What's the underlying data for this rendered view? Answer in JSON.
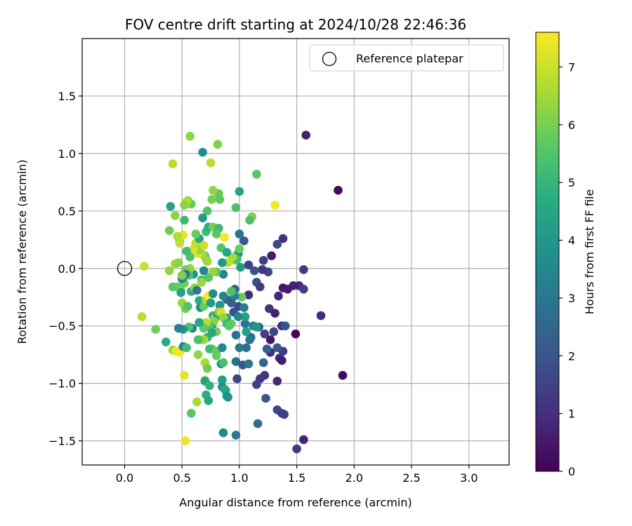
{
  "chart_data": {
    "type": "scatter",
    "title": "FOV centre drift starting at 2024/10/28 22:46:36",
    "xlabel": "Angular distance from reference (arcmin)",
    "ylabel": "Rotation from reference (arcmin)",
    "xlim": [
      -0.37,
      3.35
    ],
    "ylim": [
      -1.71,
      2.0
    ],
    "xticks": [
      0.0,
      0.5,
      1.0,
      1.5,
      2.0,
      2.5,
      3.0
    ],
    "xtick_labels": [
      "0.0",
      "0.5",
      "1.0",
      "1.5",
      "2.0",
      "2.5",
      "3.0"
    ],
    "yticks": [
      -1.5,
      -1.0,
      -0.5,
      0.0,
      0.5,
      1.0,
      1.5
    ],
    "ytick_labels": [
      "−1.5",
      "−1.0",
      "−0.5",
      "0.0",
      "0.5",
      "1.0",
      "1.5"
    ],
    "grid": true,
    "legend": {
      "placement": "top-right",
      "entries": [
        "Reference platepar"
      ]
    },
    "reference_point": {
      "x": 0.0,
      "y": 0.0
    },
    "colorbar": {
      "label": "Hours from first FF file",
      "range": [
        0,
        7.6
      ],
      "ticks": [
        0,
        1,
        2,
        3,
        4,
        5,
        6,
        7
      ],
      "tick_labels": [
        "0",
        "1",
        "2",
        "3",
        "4",
        "5",
        "6",
        "7"
      ],
      "colormap": "viridis"
    },
    "points": [
      [
        1.86,
        0.68,
        0.2
      ],
      [
        1.9,
        -0.93,
        0.2
      ],
      [
        1.49,
        -0.57,
        0.1
      ],
      [
        1.58,
        1.16,
        0.7
      ],
      [
        1.71,
        -0.41,
        0.9
      ],
      [
        1.5,
        -1.57,
        1.3
      ],
      [
        1.56,
        -1.49,
        0.8
      ],
      [
        1.38,
        0.26,
        1.0
      ],
      [
        1.33,
        0.21,
        1.7
      ],
      [
        1.28,
        0.11,
        0.6
      ],
      [
        1.21,
        0.07,
        1.4
      ],
      [
        1.56,
        -0.01,
        1.3
      ],
      [
        1.52,
        -0.15,
        0.9
      ],
      [
        1.56,
        -0.18,
        1.4
      ],
      [
        1.47,
        -0.15,
        0.7
      ],
      [
        1.42,
        -0.18,
        0.6
      ],
      [
        1.38,
        -0.17,
        0.5
      ],
      [
        1.34,
        -0.24,
        0.8
      ],
      [
        1.25,
        -0.03,
        1.6
      ],
      [
        1.2,
        -0.01,
        1.2
      ],
      [
        1.13,
        -0.02,
        2.0
      ],
      [
        1.08,
        0.03,
        1.5
      ],
      [
        1.15,
        -0.12,
        1.8
      ],
      [
        1.18,
        -0.16,
        1.3
      ],
      [
        1.08,
        -0.23,
        0.9
      ],
      [
        1.26,
        -0.35,
        1.1
      ],
      [
        1.31,
        -0.39,
        0.7
      ],
      [
        1.37,
        -0.5,
        0.9
      ],
      [
        1.4,
        -0.5,
        2.0
      ],
      [
        1.3,
        -0.55,
        1.6
      ],
      [
        1.22,
        -0.57,
        1.4
      ],
      [
        1.17,
        -0.51,
        2.4
      ],
      [
        1.27,
        -0.62,
        0.5
      ],
      [
        1.38,
        -0.72,
        1.4
      ],
      [
        1.33,
        -0.69,
        2.2
      ],
      [
        1.27,
        -0.73,
        1.0
      ],
      [
        1.35,
        -0.78,
        0.9
      ],
      [
        1.37,
        -0.8,
        0.6
      ],
      [
        1.24,
        -0.7,
        2.3
      ],
      [
        1.21,
        -0.82,
        2.5
      ],
      [
        1.22,
        -0.93,
        1.1
      ],
      [
        1.18,
        -0.96,
        1.2
      ],
      [
        1.15,
        -1.01,
        1.5
      ],
      [
        1.33,
        -0.98,
        0.8
      ],
      [
        1.23,
        -1.13,
        2.0
      ],
      [
        1.33,
        -1.23,
        1.7
      ],
      [
        1.37,
        -1.26,
        1.2
      ],
      [
        1.39,
        -1.27,
        1.4
      ],
      [
        1.16,
        -1.35,
        2.7
      ],
      [
        0.97,
        -1.45,
        3.0
      ],
      [
        0.86,
        -1.43,
        3.5
      ],
      [
        0.98,
        -0.96,
        1.6
      ],
      [
        0.96,
        -0.18,
        2.5
      ],
      [
        0.95,
        -0.38,
        2.0
      ],
      [
        0.99,
        -0.33,
        1.8
      ],
      [
        1.04,
        -0.34,
        3.2
      ],
      [
        1.05,
        -0.48,
        2.9
      ],
      [
        1.1,
        -0.6,
        2.5
      ],
      [
        1.06,
        -0.69,
        2.8
      ],
      [
        1.0,
        -0.69,
        3.1
      ],
      [
        0.97,
        -0.58,
        2.7
      ],
      [
        0.97,
        -0.81,
        2.8
      ],
      [
        1.03,
        -0.84,
        1.9
      ],
      [
        1.08,
        -0.83,
        3.0
      ],
      [
        1.09,
        -0.62,
        3.0
      ],
      [
        1.12,
        -0.5,
        3.4
      ],
      [
        1.15,
        -0.51,
        4.0
      ],
      [
        1.06,
        -0.55,
        4.3
      ],
      [
        1.05,
        -0.42,
        4.4
      ],
      [
        1.02,
        -0.25,
        5.8
      ],
      [
        0.96,
        -0.24,
        3.5
      ],
      [
        0.93,
        -0.3,
        2.4
      ],
      [
        0.89,
        -0.27,
        2.5
      ],
      [
        0.86,
        -0.24,
        3.4
      ],
      [
        0.83,
        -0.32,
        3.9
      ],
      [
        0.89,
        -0.43,
        4.4
      ],
      [
        0.93,
        -0.48,
        5.8
      ],
      [
        0.99,
        -0.42,
        3.4
      ],
      [
        0.93,
        -0.2,
        5.4
      ],
      [
        1.04,
        0.24,
        2.1
      ],
      [
        1.0,
        0.3,
        2.9
      ],
      [
        0.99,
        0.13,
        3.6
      ],
      [
        1.0,
        0.17,
        5.8
      ],
      [
        1.01,
        0.01,
        4.1
      ],
      [
        0.96,
        0.07,
        6.5
      ],
      [
        0.98,
        0.08,
        5.3
      ],
      [
        0.94,
        0.1,
        6.6
      ],
      [
        1.11,
        0.45,
        6.2
      ],
      [
        1.09,
        0.42,
        5.4
      ],
      [
        1.0,
        0.67,
        4.4
      ],
      [
        0.97,
        0.53,
        5.4
      ],
      [
        1.15,
        0.82,
        5.6
      ],
      [
        1.31,
        0.55,
        7.5
      ],
      [
        0.81,
        1.08,
        6.1
      ],
      [
        0.82,
        0.65,
        5.8
      ],
      [
        0.77,
        0.68,
        6.3
      ],
      [
        0.83,
        0.6,
        5.7
      ],
      [
        0.76,
        0.6,
        6.0
      ],
      [
        0.72,
        0.5,
        5.5
      ],
      [
        0.68,
        0.44,
        4.1
      ],
      [
        0.71,
        0.32,
        5.2
      ],
      [
        0.73,
        0.36,
        4.7
      ],
      [
        0.77,
        0.36,
        6.0
      ],
      [
        0.82,
        0.35,
        5.1
      ],
      [
        0.8,
        0.3,
        5.6
      ],
      [
        0.87,
        0.27,
        7.5
      ],
      [
        0.84,
        0.18,
        5.5
      ],
      [
        0.89,
        0.14,
        4.5
      ],
      [
        0.9,
        0.05,
        6.8
      ],
      [
        0.85,
        0.05,
        4.0
      ],
      [
        0.86,
        -0.05,
        3.4
      ],
      [
        0.8,
        -0.03,
        5.6
      ],
      [
        0.77,
        -0.03,
        6.4
      ],
      [
        0.7,
        0.11,
        5.6
      ],
      [
        0.71,
        0.08,
        6.0
      ],
      [
        0.68,
        0.12,
        6.5
      ],
      [
        0.64,
        0.13,
        7.3
      ],
      [
        0.65,
        0.16,
        6.3
      ],
      [
        0.6,
        0.17,
        7.2
      ],
      [
        0.62,
        0.22,
        6.8
      ],
      [
        0.65,
        0.26,
        4.5
      ],
      [
        0.62,
        0.3,
        5.8
      ],
      [
        0.69,
        0.2,
        7.0
      ],
      [
        0.72,
        0.06,
        6.5
      ],
      [
        0.73,
        -0.08,
        5.6
      ],
      [
        0.67,
        -0.1,
        5.1
      ],
      [
        0.67,
        -0.12,
        6.4
      ],
      [
        0.69,
        -0.02,
        3.5
      ],
      [
        0.6,
        -0.05,
        3.8
      ],
      [
        0.57,
        0.0,
        6.4
      ],
      [
        0.53,
        -0.01,
        6.0
      ],
      [
        0.56,
        -0.06,
        5.4
      ],
      [
        0.57,
        0.1,
        5.4
      ],
      [
        0.54,
        0.15,
        5.2
      ],
      [
        0.48,
        0.23,
        4.8
      ],
      [
        0.48,
        0.22,
        6.9
      ],
      [
        0.51,
        0.29,
        7.3
      ],
      [
        0.46,
        0.28,
        6.7
      ],
      [
        0.44,
        0.46,
        6.2
      ],
      [
        0.52,
        0.42,
        5.1
      ],
      [
        0.53,
        0.57,
        7.3
      ],
      [
        0.55,
        0.59,
        6.0
      ],
      [
        0.58,
        0.56,
        5.8
      ],
      [
        0.54,
        0.58,
        6.7
      ],
      [
        0.52,
        0.55,
        6.2
      ],
      [
        0.4,
        0.54,
        4.4
      ],
      [
        0.39,
        0.33,
        5.9
      ],
      [
        0.44,
        0.04,
        6.5
      ],
      [
        0.47,
        0.05,
        6.2
      ],
      [
        0.39,
        -0.02,
        6.3
      ],
      [
        0.17,
        0.02,
        7.0
      ],
      [
        0.42,
        -0.16,
        5.6
      ],
      [
        0.46,
        -0.16,
        5.7
      ],
      [
        0.49,
        -0.19,
        6.0
      ],
      [
        0.52,
        -0.13,
        5.9
      ],
      [
        0.5,
        -0.09,
        3.5
      ],
      [
        0.53,
        -0.05,
        3.1
      ],
      [
        0.5,
        -0.06,
        6.1
      ],
      [
        0.49,
        -0.21,
        4.4
      ],
      [
        0.5,
        -0.3,
        6.4
      ],
      [
        0.53,
        -0.35,
        6.0
      ],
      [
        0.55,
        -0.33,
        5.5
      ],
      [
        0.58,
        -0.2,
        4.8
      ],
      [
        0.61,
        -0.17,
        6.2
      ],
      [
        0.63,
        -0.19,
        3.0
      ],
      [
        0.65,
        -0.28,
        4.7
      ],
      [
        0.66,
        -0.34,
        3.5
      ],
      [
        0.69,
        -0.33,
        5.8
      ],
      [
        0.71,
        -0.27,
        6.6
      ],
      [
        0.73,
        -0.24,
        7.6
      ],
      [
        0.77,
        -0.22,
        3.7
      ],
      [
        0.75,
        -0.3,
        4.2
      ],
      [
        0.77,
        -0.41,
        5.0
      ],
      [
        0.79,
        -0.43,
        6.7
      ],
      [
        0.81,
        -0.41,
        3.9
      ],
      [
        0.78,
        -0.46,
        6.2
      ],
      [
        0.76,
        -0.52,
        3.1
      ],
      [
        0.74,
        -0.5,
        5.5
      ],
      [
        0.71,
        -0.47,
        6.8
      ],
      [
        0.69,
        -0.52,
        5.7
      ],
      [
        0.65,
        -0.47,
        4.6
      ],
      [
        0.59,
        -0.52,
        3.3
      ],
      [
        0.56,
        -0.51,
        5.4
      ],
      [
        0.51,
        -0.53,
        3.8
      ],
      [
        0.47,
        -0.52,
        3.3
      ],
      [
        0.36,
        -0.64,
        4.7
      ],
      [
        0.42,
        -0.71,
        6.5
      ],
      [
        0.45,
        -0.72,
        7.4
      ],
      [
        0.48,
        -0.73,
        7.5
      ],
      [
        0.51,
        -0.68,
        3.4
      ],
      [
        0.54,
        -0.69,
        5.2
      ],
      [
        0.27,
        -0.53,
        5.9
      ],
      [
        0.15,
        -0.42,
        6.8
      ],
      [
        0.42,
        0.91,
        6.8
      ],
      [
        0.57,
        1.15,
        6.3
      ],
      [
        0.68,
        1.01,
        3.7
      ],
      [
        0.75,
        0.92,
        6.8
      ],
      [
        0.82,
        -0.38,
        6.1
      ],
      [
        0.84,
        -0.38,
        7.1
      ],
      [
        0.86,
        -0.43,
        6.3
      ],
      [
        0.89,
        -0.48,
        5.1
      ],
      [
        0.91,
        -0.5,
        5.6
      ],
      [
        0.8,
        -0.55,
        6.0
      ],
      [
        0.76,
        -0.56,
        4.5
      ],
      [
        0.72,
        -0.6,
        4.9
      ],
      [
        0.69,
        -0.62,
        6.7
      ],
      [
        0.67,
        -0.62,
        6.4
      ],
      [
        0.64,
        -0.62,
        5.4
      ],
      [
        0.76,
        -0.7,
        5.6
      ],
      [
        0.74,
        -0.7,
        5.2
      ],
      [
        0.8,
        -0.72,
        5.8
      ],
      [
        0.85,
        -0.69,
        3.6
      ],
      [
        0.84,
        -0.83,
        3.9
      ],
      [
        0.86,
        -0.82,
        5.4
      ],
      [
        0.8,
        -0.76,
        5.8
      ],
      [
        0.64,
        -0.75,
        6.3
      ],
      [
        0.7,
        -0.82,
        6.6
      ],
      [
        0.72,
        -0.87,
        5.9
      ],
      [
        0.52,
        -0.93,
        7.3
      ],
      [
        0.7,
        -0.97,
        7.1
      ],
      [
        0.7,
        -0.98,
        4.3
      ],
      [
        0.74,
        -1.02,
        4.9
      ],
      [
        0.85,
        -0.97,
        4.3
      ],
      [
        0.85,
        -1.03,
        3.7
      ],
      [
        0.87,
        -1.05,
        4.3
      ],
      [
        0.88,
        -1.06,
        4.6
      ],
      [
        0.89,
        -1.11,
        4.0
      ],
      [
        0.71,
        -1.1,
        4.8
      ],
      [
        0.73,
        -1.15,
        4.5
      ],
      [
        0.63,
        -1.16,
        6.6
      ],
      [
        0.58,
        -1.26,
        5.6
      ],
      [
        0.53,
        -1.5,
        7.4
      ],
      [
        0.9,
        -1.12,
        3.8
      ]
    ]
  }
}
